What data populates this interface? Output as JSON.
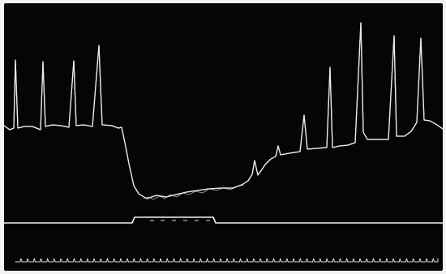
{
  "colors": {
    "background": "#050505",
    "trace": "#e9e9e9",
    "signal": "#f2f2f2",
    "ticks": "#d8d8d8"
  },
  "traces": [
    "upper-physiological-trace",
    "event-marker-trace",
    "time-marker-trace"
  ]
}
